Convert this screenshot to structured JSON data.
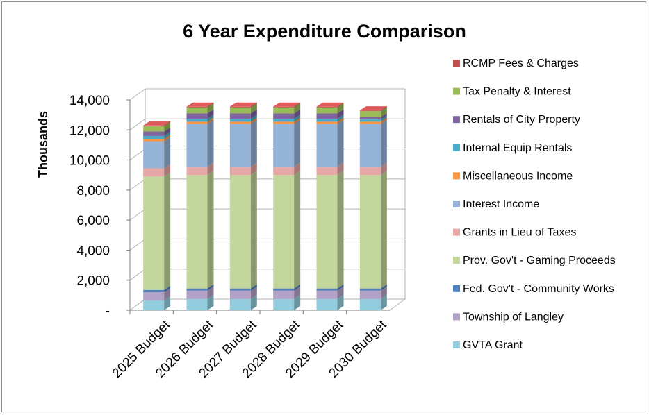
{
  "chart_data": {
    "type": "bar",
    "stacked": true,
    "three_d": true,
    "title": "6 Year Expenditure Comparison",
    "xlabel": "",
    "ylabel": "Thousands",
    "ylim": [
      0,
      14000
    ],
    "y_ticks": [
      "-",
      "2,000",
      "4,000",
      "6,000",
      "8,000",
      "10,000",
      "12,000",
      "14,000"
    ],
    "categories": [
      "2025 Budget",
      "2026 Budget",
      "2027 Budget",
      "2028 Budget",
      "2029 Budget",
      "2030 Budget"
    ],
    "grid": true,
    "legend_position": "right",
    "series": [
      {
        "name": "GVTA Grant",
        "color": "#93cddd",
        "values": [
          650,
          750,
          750,
          750,
          750,
          750
        ]
      },
      {
        "name": "Township of Langley",
        "color": "#b3a2c7",
        "values": [
          550,
          550,
          550,
          550,
          550,
          550
        ]
      },
      {
        "name": "Fed. Gov't - Community Works",
        "color": "#4f81bd",
        "values": [
          150,
          150,
          150,
          150,
          150,
          150
        ]
      },
      {
        "name": "Prov. Gov't - Gaming Proceeds",
        "color": "#c3d69b",
        "values": [
          7550,
          7550,
          7550,
          7550,
          7550,
          7550
        ]
      },
      {
        "name": "Grants in Lieu of Taxes",
        "color": "#e6a8a6",
        "values": [
          550,
          550,
          550,
          550,
          550,
          550
        ]
      },
      {
        "name": "Interest Income",
        "color": "#95b3d7",
        "values": [
          1800,
          2850,
          2850,
          2850,
          2850,
          2850
        ]
      },
      {
        "name": "Miscellaneous Income",
        "color": "#f79646",
        "values": [
          150,
          150,
          150,
          150,
          150,
          150
        ]
      },
      {
        "name": "Internal Equip Rentals",
        "color": "#4bacc6",
        "values": [
          200,
          200,
          200,
          200,
          200,
          150
        ]
      },
      {
        "name": "Rentals of City Property",
        "color": "#8064a2",
        "values": [
          300,
          350,
          350,
          350,
          350,
          150
        ]
      },
      {
        "name": "Tax Penalty & Interest",
        "color": "#9bbb59",
        "values": [
          350,
          400,
          400,
          400,
          400,
          400
        ]
      },
      {
        "name": "RCMP Fees & Charges",
        "color": "#c0504d",
        "values": [
          50,
          50,
          50,
          50,
          50,
          50
        ]
      }
    ]
  }
}
